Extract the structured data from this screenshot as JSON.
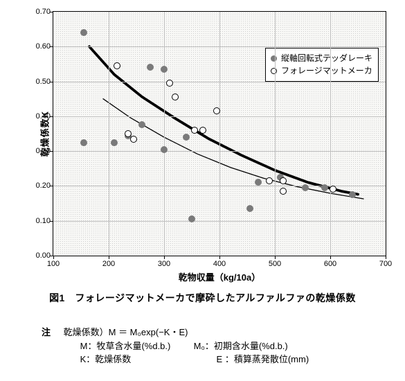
{
  "chart": {
    "type": "scatter",
    "xlim": [
      100,
      700
    ],
    "ylim": [
      0.0,
      0.7
    ],
    "xticks": [
      100,
      200,
      300,
      400,
      500,
      600,
      700
    ],
    "yticks": [
      0.0,
      0.1,
      0.2,
      0.3,
      0.4,
      0.5,
      0.6,
      0.7
    ],
    "xlabel": "乾物収量（kg/10a）",
    "ylabel": "乾燥係数K",
    "background_color": "#f8f8f6",
    "grid_color": "#bfbfbf",
    "series": [
      {
        "name": "縦軸回転式テッダレーキ",
        "marker": "filled-circle",
        "color": "#7a7a7a",
        "points": [
          [
            155,
            0.64
          ],
          [
            155,
            0.325
          ],
          [
            210,
            0.325
          ],
          [
            235,
            0.345
          ],
          [
            260,
            0.375
          ],
          [
            275,
            0.54
          ],
          [
            300,
            0.535
          ],
          [
            300,
            0.305
          ],
          [
            340,
            0.34
          ],
          [
            350,
            0.105
          ],
          [
            455,
            0.135
          ],
          [
            470,
            0.21
          ],
          [
            510,
            0.225
          ],
          [
            555,
            0.195
          ],
          [
            590,
            0.195
          ],
          [
            640,
            0.175
          ]
        ]
      },
      {
        "name": "フォレージマットメーカ",
        "marker": "open-circle",
        "color": "#000000",
        "points": [
          [
            215,
            0.545
          ],
          [
            235,
            0.35
          ],
          [
            245,
            0.335
          ],
          [
            310,
            0.495
          ],
          [
            320,
            0.455
          ],
          [
            355,
            0.36
          ],
          [
            370,
            0.36
          ],
          [
            395,
            0.415
          ],
          [
            490,
            0.215
          ],
          [
            515,
            0.215
          ],
          [
            515,
            0.185
          ],
          [
            605,
            0.19
          ]
        ]
      }
    ],
    "curves": [
      {
        "name": "thick",
        "width": 3.8,
        "color": "#000000",
        "points": [
          [
            165,
            0.6
          ],
          [
            210,
            0.52
          ],
          [
            260,
            0.456
          ],
          [
            320,
            0.394
          ],
          [
            380,
            0.336
          ],
          [
            440,
            0.288
          ],
          [
            500,
            0.245
          ],
          [
            560,
            0.21
          ],
          [
            620,
            0.185
          ],
          [
            650,
            0.176
          ]
        ]
      },
      {
        "name": "thin",
        "width": 1.3,
        "color": "#000000",
        "points": [
          [
            190,
            0.45
          ],
          [
            240,
            0.395
          ],
          [
            300,
            0.34
          ],
          [
            360,
            0.292
          ],
          [
            420,
            0.253
          ],
          [
            480,
            0.222
          ],
          [
            540,
            0.198
          ],
          [
            600,
            0.179
          ],
          [
            660,
            0.163
          ]
        ]
      }
    ],
    "legend": {
      "items": [
        {
          "label": "縦軸回転式テッダレーキ",
          "marker": "filled",
          "color": "#7a7a7a"
        },
        {
          "label": "フォレージマットメーカ",
          "marker": "open",
          "color": "#000000"
        }
      ]
    }
  },
  "caption": "図1　フォレージマットメーカで摩砕したアルファルファの乾燥係数",
  "note": {
    "lead": "注",
    "line1": "乾燥係数）M ＝ M₀exp(−K・E)",
    "line2a": "M：牧草含水量(%d.b.)",
    "line2b": "M₀：初期含水量(%d.b.)",
    "line3a": "K：乾燥係数",
    "line3b": "E ：積算蒸発散位(mm)"
  }
}
